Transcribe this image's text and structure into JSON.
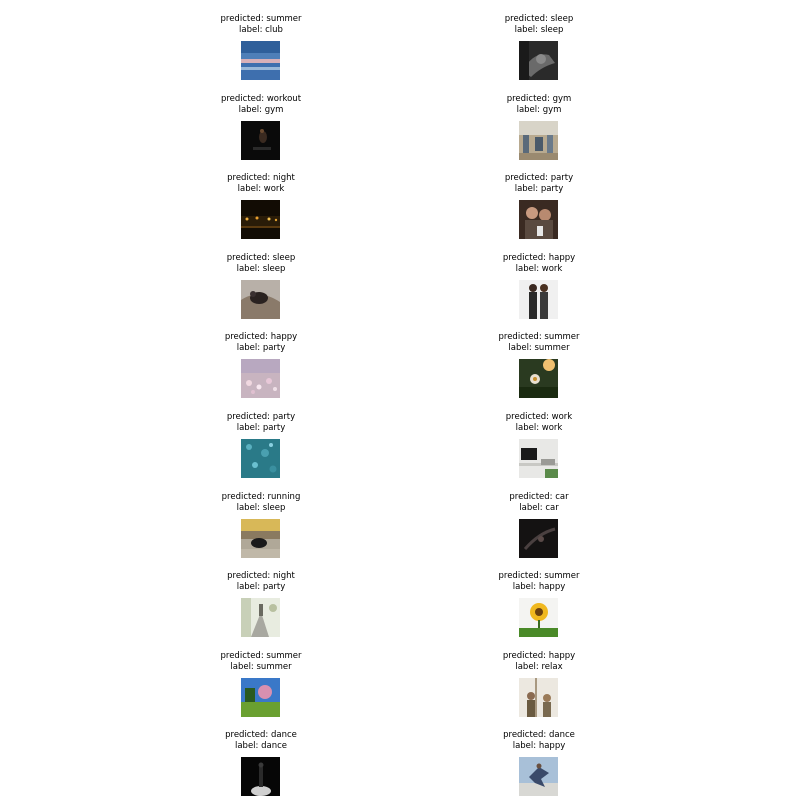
{
  "items": [
    {
      "predicted": "predicted: summer",
      "label": "label: club"
    },
    {
      "predicted": "predicted: sleep",
      "label": "label: sleep"
    },
    {
      "predicted": "predicted: workout",
      "label": "label: gym"
    },
    {
      "predicted": "predicted: gym",
      "label": "label: gym"
    },
    {
      "predicted": "predicted: night",
      "label": "label: work"
    },
    {
      "predicted": "predicted: party",
      "label": "label: party"
    },
    {
      "predicted": "predicted: sleep",
      "label": "label: sleep"
    },
    {
      "predicted": "predicted: happy",
      "label": "label: work"
    },
    {
      "predicted": "predicted: happy",
      "label": "label: party"
    },
    {
      "predicted": "predicted: summer",
      "label": "label: summer"
    },
    {
      "predicted": "predicted: party",
      "label": "label: party"
    },
    {
      "predicted": "predicted: work",
      "label": "label: work"
    },
    {
      "predicted": "predicted: running",
      "label": "label: sleep"
    },
    {
      "predicted": "predicted: car",
      "label": "label: car"
    },
    {
      "predicted": "predicted: night",
      "label": "label: party"
    },
    {
      "predicted": "predicted: summer",
      "label": "label: happy"
    },
    {
      "predicted": "predicted: summer",
      "label": "label: summer"
    },
    {
      "predicted": "predicted: happy",
      "label": "label: relax"
    },
    {
      "predicted": "predicted: dance",
      "label": "label: dance"
    },
    {
      "predicted": "predicted: dance",
      "label": "label: happy"
    }
  ]
}
